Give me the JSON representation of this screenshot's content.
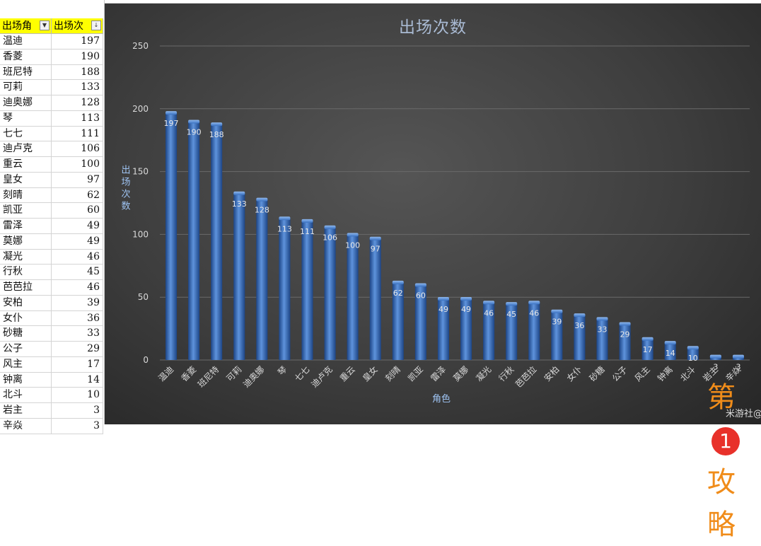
{
  "sheet": {
    "header_name": "出场角",
    "header_value": "出场次",
    "rows": [
      {
        "name": "温迪",
        "value": "197"
      },
      {
        "name": "香菱",
        "value": "190"
      },
      {
        "name": "班尼特",
        "value": "188"
      },
      {
        "name": "可莉",
        "value": "133"
      },
      {
        "name": "迪奥娜",
        "value": "128"
      },
      {
        "name": "琴",
        "value": "113"
      },
      {
        "name": "七七",
        "value": "111"
      },
      {
        "name": "迪卢克",
        "value": "106"
      },
      {
        "name": "重云",
        "value": "100"
      },
      {
        "name": "皇女",
        "value": "97"
      },
      {
        "name": "刻晴",
        "value": "62"
      },
      {
        "name": "凯亚",
        "value": "60"
      },
      {
        "name": "雷泽",
        "value": "49"
      },
      {
        "name": "莫娜",
        "value": "49"
      },
      {
        "name": "凝光",
        "value": "46"
      },
      {
        "name": "行秋",
        "value": "45"
      },
      {
        "name": "芭芭拉",
        "value": "46"
      },
      {
        "name": "安柏",
        "value": "39"
      },
      {
        "name": "女仆",
        "value": "36"
      },
      {
        "name": "砂糖",
        "value": "33"
      },
      {
        "name": "公子",
        "value": "29"
      },
      {
        "name": "风主",
        "value": "17"
      },
      {
        "name": "钟离",
        "value": "14"
      },
      {
        "name": "北斗",
        "value": "10"
      },
      {
        "name": "岩主",
        "value": "3"
      },
      {
        "name": "辛焱",
        "value": "3"
      }
    ]
  },
  "chart_data": {
    "type": "bar",
    "title": "出场次数",
    "xlabel": "角色",
    "ylabel": "出场次数",
    "ylim": [
      0,
      250
    ],
    "yticks": [
      0,
      50,
      100,
      150,
      200,
      250
    ],
    "grid": true,
    "legend": "none",
    "categories": [
      "温迪",
      "香菱",
      "班尼特",
      "可莉",
      "迪奥娜",
      "琴",
      "七七",
      "迪卢克",
      "重云",
      "皇女",
      "刻晴",
      "凯亚",
      "雷泽",
      "莫娜",
      "凝光",
      "行秋",
      "芭芭拉",
      "安柏",
      "女仆",
      "砂糖",
      "公子",
      "风主",
      "钟离",
      "北斗",
      "岩主",
      "辛焱"
    ],
    "values": [
      197,
      190,
      188,
      133,
      128,
      113,
      111,
      106,
      100,
      97,
      62,
      60,
      49,
      49,
      46,
      45,
      46,
      39,
      36,
      33,
      29,
      17,
      14,
      10,
      3,
      3
    ],
    "colors": {
      "bar": "#2f67b8",
      "bar_light": "#5e93dc",
      "bar_dark": "#1d4586",
      "axis_text": "#d9d9d9",
      "title": "#a9bad3",
      "axis_title": "#9ec3f2"
    }
  },
  "watermark": {
    "left": "第",
    "circle": "1",
    "right": "攻略",
    "sub": "米游社@(）"
  }
}
